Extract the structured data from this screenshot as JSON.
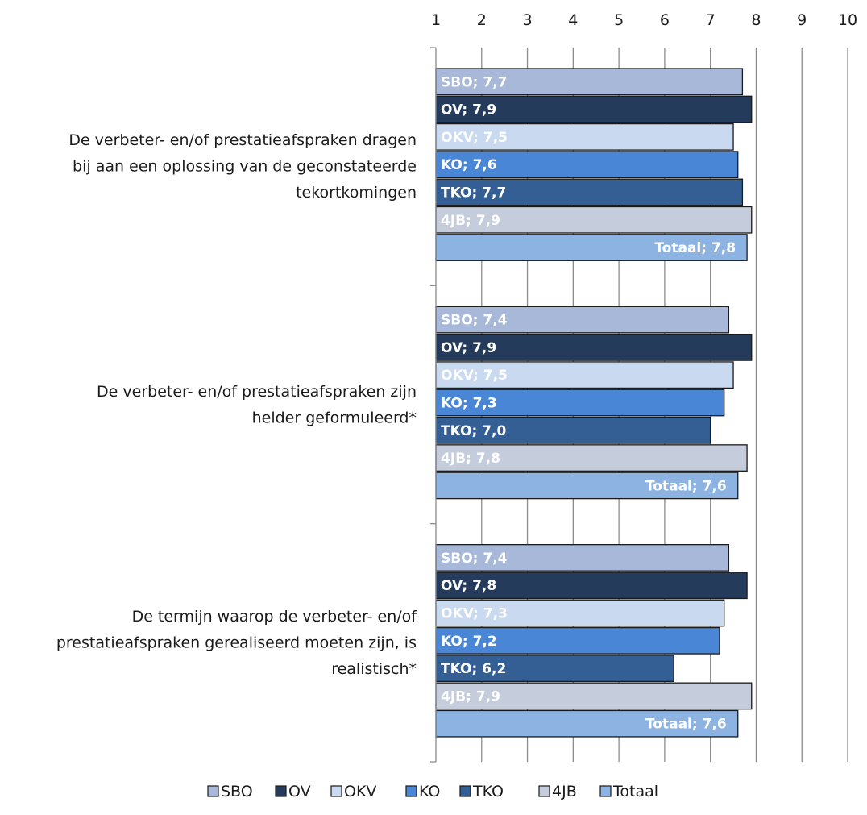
{
  "chart_data": {
    "type": "bar",
    "orientation": "horizontal",
    "xlim": [
      1,
      10
    ],
    "x_ticks": [
      "1",
      "2",
      "3",
      "4",
      "5",
      "6",
      "7",
      "8",
      "9",
      "10"
    ],
    "grid": true,
    "legend_position": "bottom",
    "categories": [
      [
        "De verbeter- en/of prestatieafspraken dragen",
        "bij aan een oplossing van de geconstateerde",
        "tekortkomingen"
      ],
      [
        "De verbeter- en/of prestatieafspraken zijn",
        "helder geformuleerd*"
      ],
      [
        "De termijn waarop de verbeter- en/of",
        "prestatieafspraken gerealiseerd moeten zijn, is",
        "realistisch*"
      ]
    ],
    "series": [
      {
        "name": "SBO",
        "color": "#A7B8D9",
        "label_color": "#ffffff",
        "values": [
          7.7,
          7.4,
          7.4
        ],
        "labels": [
          "SBO; 7,7",
          "SBO; 7,4",
          "SBO; 7,4"
        ]
      },
      {
        "name": "OV",
        "color": "#243B5C",
        "label_color": "#ffffff",
        "values": [
          7.9,
          7.9,
          7.8
        ],
        "labels": [
          "OV; 7,9",
          "OV; 7,9",
          "OV; 7,8"
        ]
      },
      {
        "name": "OKV",
        "color": "#C9D9F0",
        "label_color": "#ffffff",
        "values": [
          7.5,
          7.5,
          7.3
        ],
        "labels": [
          "OKV; 7,5",
          "OKV; 7,5",
          "OKV; 7,3"
        ]
      },
      {
        "name": "KO",
        "color": "#4A86D6",
        "label_color": "#ffffff",
        "values": [
          7.6,
          7.3,
          7.2
        ],
        "labels": [
          "KO; 7,6",
          "KO; 7,3",
          "KO; 7,2"
        ]
      },
      {
        "name": "TKO",
        "color": "#345F94",
        "label_color": "#ffffff",
        "values": [
          7.7,
          7.0,
          6.2
        ],
        "labels": [
          "TKO; 7,7",
          "TKO; 7,0",
          "TKO; 6,2"
        ]
      },
      {
        "name": "4JB",
        "color": "#C5CCDB",
        "label_color": "#ffffff",
        "values": [
          7.9,
          7.8,
          7.9
        ],
        "labels": [
          "4JB; 7,9",
          "4JB; 7,8",
          "4JB; 7,9"
        ]
      },
      {
        "name": "Totaal",
        "color": "#8DB3E2",
        "label_color": "#ffffff",
        "values": [
          7.8,
          7.6,
          7.6
        ],
        "labels": [
          "Totaal; 7,8",
          "Totaal; 7,6",
          "Totaal; 7,6"
        ]
      }
    ]
  }
}
